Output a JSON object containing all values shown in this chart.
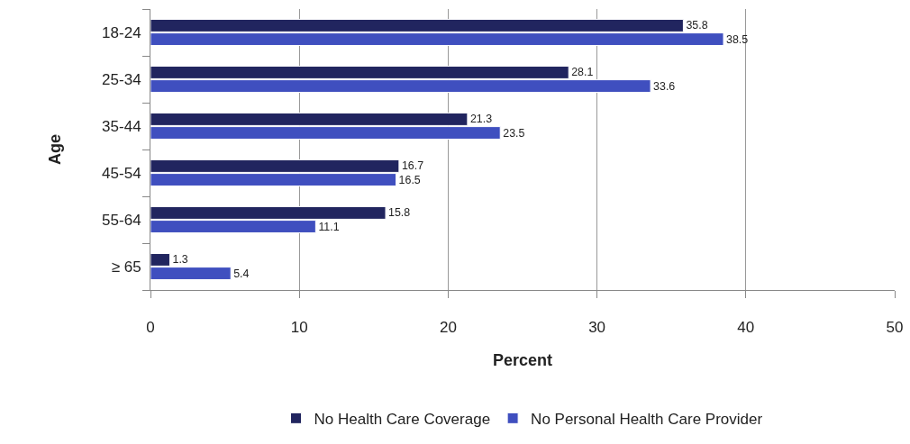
{
  "chart_data": {
    "type": "bar",
    "orientation": "horizontal",
    "xlabel": "Percent",
    "ylabel": "Age",
    "categories": [
      "18-24",
      "25-34",
      "35-44",
      "45-54",
      "55-64",
      "≥ 65"
    ],
    "series": [
      {
        "name": "No Health Care Coverage",
        "color": "#21255f",
        "values": [
          35.8,
          28.1,
          21.3,
          16.7,
          15.8,
          1.3
        ]
      },
      {
        "name": "No Personal Health Care Provider",
        "color": "#3f4fbf",
        "values": [
          38.5,
          33.6,
          23.5,
          16.5,
          11.1,
          5.4
        ]
      }
    ],
    "xlim": [
      0,
      50
    ],
    "xticks": [
      0,
      10,
      20,
      30,
      40,
      50
    ],
    "grid": "x",
    "legend": "bottom",
    "data_labels": true
  }
}
